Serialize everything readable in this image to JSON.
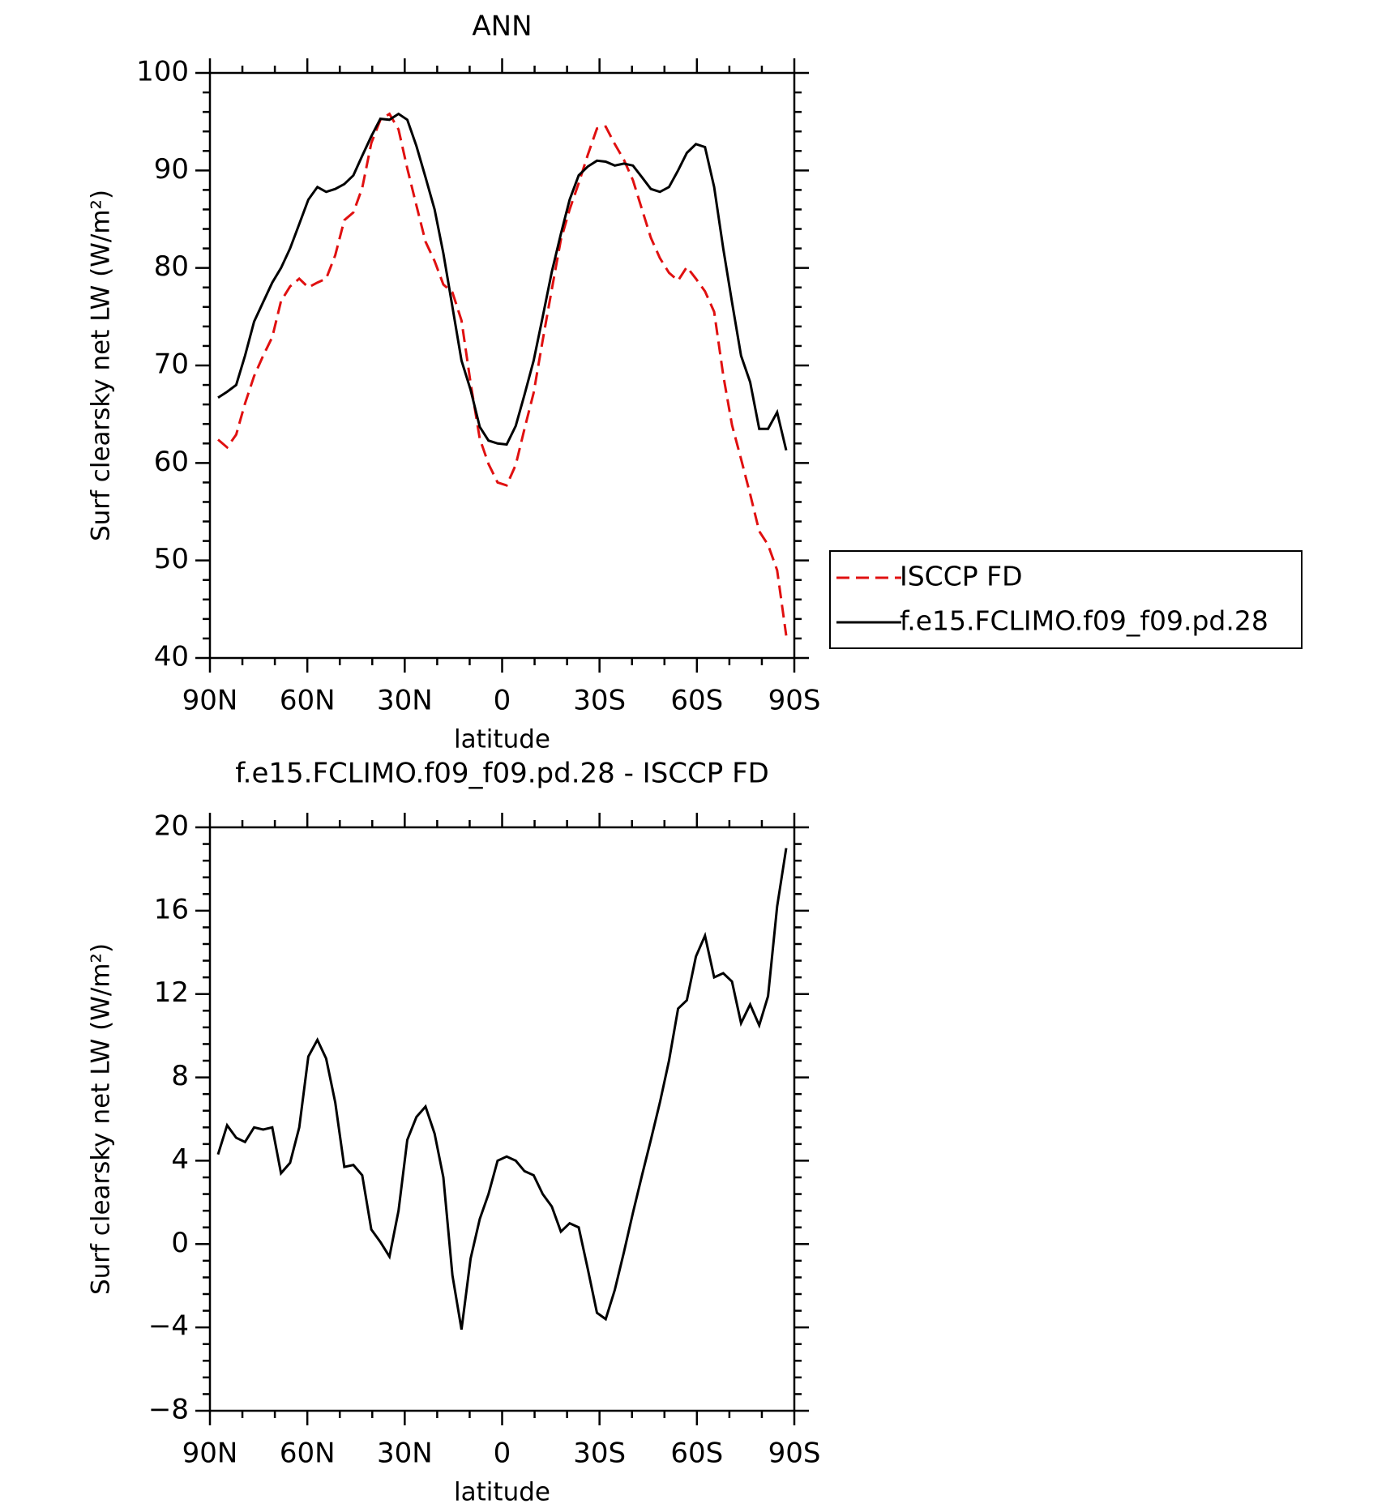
{
  "chart_data": [
    {
      "type": "line",
      "title": "ANN",
      "xlabel": "latitude",
      "ylabel": "Surf clearsky net LW (W/m²)",
      "x": [
        87.5,
        84.7,
        81.9,
        79.2,
        76.4,
        73.6,
        70.8,
        68.1,
        65.3,
        62.5,
        59.7,
        56.9,
        54.2,
        51.4,
        48.6,
        45.8,
        43.1,
        40.3,
        37.5,
        34.7,
        31.9,
        29.2,
        26.4,
        23.6,
        20.8,
        18.1,
        15.3,
        12.5,
        9.7,
        6.9,
        4.2,
        1.4,
        -1.4,
        -4.2,
        -6.9,
        -9.7,
        -12.5,
        -15.3,
        -18.1,
        -20.8,
        -23.6,
        -26.4,
        -29.2,
        -31.9,
        -34.7,
        -37.5,
        -40.3,
        -43.1,
        -45.8,
        -48.6,
        -51.4,
        -54.2,
        -56.9,
        -59.7,
        -62.5,
        -65.3,
        -68.1,
        -70.8,
        -73.6,
        -76.4,
        -79.2,
        -81.9,
        -84.7,
        -87.5
      ],
      "series": [
        {
          "name": "ISCCP FD",
          "color": "#e01010",
          "style": "dashed",
          "values": [
            62.4,
            61.6,
            62.9,
            66.1,
            68.9,
            71.0,
            72.9,
            76.6,
            78.1,
            78.9,
            78.0,
            78.5,
            78.9,
            81.3,
            84.9,
            85.7,
            88.2,
            92.8,
            95.2,
            95.8,
            94.2,
            90.2,
            86.4,
            82.7,
            80.7,
            78.3,
            77.5,
            74.6,
            68.2,
            62.5,
            59.9,
            58.0,
            57.7,
            59.8,
            63.5,
            67.2,
            72.6,
            77.8,
            82.9,
            86.0,
            88.7,
            91.6,
            94.3,
            94.5,
            92.7,
            91.1,
            89.0,
            86.0,
            83.1,
            81.0,
            79.5,
            78.7,
            80.1,
            78.9,
            77.6,
            75.5,
            69.0,
            63.9,
            60.4,
            56.8,
            53.0,
            51.6,
            49.0,
            42.3
          ]
        },
        {
          "name": "f.e15.FCLIMO.f09_f09.pd.28",
          "color": "#000000",
          "style": "solid",
          "values": [
            66.7,
            67.3,
            68.0,
            71.0,
            74.5,
            76.5,
            78.5,
            80.0,
            82.0,
            84.5,
            87.0,
            88.3,
            87.8,
            88.1,
            88.6,
            89.5,
            91.5,
            93.5,
            95.3,
            95.2,
            95.8,
            95.2,
            92.5,
            89.3,
            86.0,
            81.5,
            76.0,
            70.5,
            67.5,
            63.7,
            62.3,
            62.0,
            61.9,
            63.8,
            67.0,
            70.5,
            75.0,
            79.6,
            83.5,
            87.0,
            89.5,
            90.4,
            91.0,
            90.9,
            90.5,
            90.7,
            90.5,
            89.3,
            88.1,
            87.8,
            88.3,
            90.0,
            91.8,
            92.7,
            92.4,
            88.3,
            82.0,
            76.5,
            71.0,
            68.3,
            63.5,
            63.5,
            65.2,
            61.3
          ]
        }
      ],
      "xlim": [
        90,
        -90
      ],
      "xticks": [
        {
          "value": 90,
          "label": "90N"
        },
        {
          "value": 60,
          "label": "60N"
        },
        {
          "value": 30,
          "label": "30N"
        },
        0,
        {
          "value": -30,
          "label": "30S"
        },
        {
          "value": -60,
          "label": "60S"
        },
        {
          "value": -90,
          "label": "90S"
        }
      ],
      "ylim": [
        40,
        100
      ],
      "yticks": [
        40,
        50,
        60,
        70,
        80,
        90,
        100
      ],
      "legend": "right"
    },
    {
      "type": "line",
      "title": "f.e15.FCLIMO.f09_f09.pd.28 - ISCCP FD",
      "xlabel": "latitude",
      "ylabel": "Surf clearsky net LW (W/m²)",
      "x": [
        87.5,
        84.7,
        81.9,
        79.2,
        76.4,
        73.6,
        70.8,
        68.1,
        65.3,
        62.5,
        59.7,
        56.9,
        54.2,
        51.4,
        48.6,
        45.8,
        43.1,
        40.3,
        37.5,
        34.7,
        31.9,
        29.2,
        26.4,
        23.6,
        20.8,
        18.1,
        15.3,
        12.5,
        9.7,
        6.9,
        4.2,
        1.4,
        -1.4,
        -4.2,
        -6.9,
        -9.7,
        -12.5,
        -15.3,
        -18.1,
        -20.8,
        -23.6,
        -26.4,
        -29.2,
        -31.9,
        -34.7,
        -37.5,
        -40.3,
        -43.1,
        -45.8,
        -48.6,
        -51.4,
        -54.2,
        -56.9,
        -59.7,
        -62.5,
        -65.3,
        -68.1,
        -70.8,
        -73.6,
        -76.4,
        -79.2,
        -81.9,
        -84.7,
        -87.5
      ],
      "series": [
        {
          "color": "#000000",
          "style": "solid",
          "values": [
            4.3,
            5.7,
            5.1,
            4.9,
            5.6,
            5.5,
            5.6,
            3.4,
            3.9,
            5.6,
            9.0,
            9.8,
            8.9,
            6.8,
            3.7,
            3.8,
            3.3,
            0.7,
            0.1,
            -0.6,
            1.6,
            5.0,
            6.1,
            6.6,
            5.3,
            3.2,
            -1.5,
            -4.1,
            -0.7,
            1.2,
            2.4,
            4.0,
            4.2,
            4.0,
            3.5,
            3.3,
            2.4,
            1.8,
            0.6,
            1.0,
            0.8,
            -1.2,
            -3.3,
            -3.6,
            -2.2,
            -0.4,
            1.5,
            3.3,
            5.0,
            6.8,
            8.8,
            11.3,
            11.7,
            13.8,
            14.8,
            12.8,
            13.0,
            12.6,
            10.6,
            11.5,
            10.5,
            11.9,
            16.2,
            19.0
          ]
        }
      ],
      "xlim": [
        90,
        -90
      ],
      "xticks": [
        {
          "value": 90,
          "label": "90N"
        },
        {
          "value": 60,
          "label": "60N"
        },
        {
          "value": 30,
          "label": "30N"
        },
        0,
        {
          "value": -30,
          "label": "30S"
        },
        {
          "value": -60,
          "label": "60S"
        },
        {
          "value": -90,
          "label": "90S"
        }
      ],
      "ylim": [
        -8,
        20
      ],
      "yticks": [
        {
          "value": -8,
          "label": "−8"
        },
        {
          "value": -4,
          "label": "−4"
        },
        0,
        4,
        8,
        12,
        16,
        20
      ]
    }
  ]
}
